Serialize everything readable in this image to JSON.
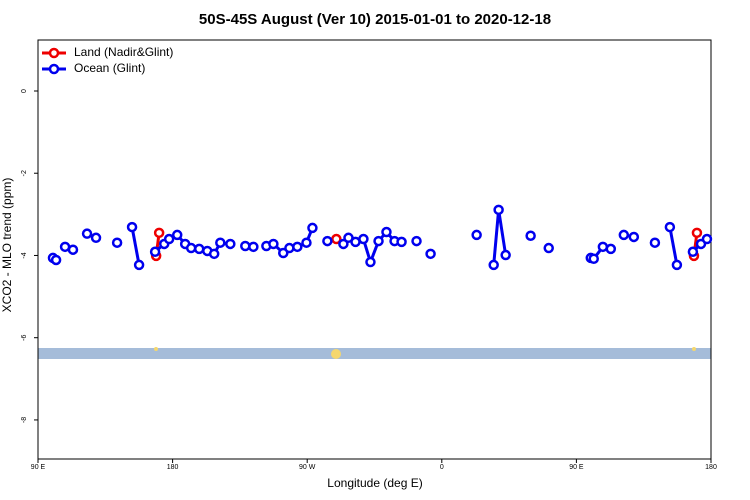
{
  "chart_data": {
    "type": "line",
    "title": "50S-45S August (Ver 10)   2015-01-01 to 2020-12-18",
    "x_label": "Longitude (deg E)",
    "y_label": "XCO2 - MLO trend (ppm)",
    "xlim": [
      90,
      540
    ],
    "ylim": [
      -8.95,
      1.24
    ],
    "xticks": [
      {
        "value": 90,
        "label": "90 E"
      },
      {
        "value": 180,
        "label": "180"
      },
      {
        "value": 270,
        "label": "90 W"
      },
      {
        "value": 360,
        "label": "0"
      },
      {
        "value": 450,
        "label": "90 E"
      },
      {
        "value": 540,
        "label": "180"
      }
    ],
    "yticks": [
      0,
      -2,
      -4,
      -6,
      -8
    ],
    "legend": "top-left",
    "series": [
      {
        "name": "Land (Nadir&Glint)",
        "color": "#ee0000",
        "x": [
          169.0,
          171.0,
          null,
          289.5,
          null,
          528.6,
          530.6
        ],
        "values": [
          -4.01,
          -3.45,
          null,
          -3.6,
          null,
          -4.01,
          -3.45
        ]
      },
      {
        "name": "Ocean (Glint)",
        "color": "#0000ee",
        "x": [
          100.0,
          102.1,
          null,
          108.1,
          113.4,
          null,
          122.8,
          128.8,
          null,
          142.9,
          null,
          152.9,
          157.6,
          null,
          168.3,
          174.4,
          177.7,
          183.1,
          188.4,
          192.4,
          197.8,
          203.2,
          207.8,
          211.9,
          218.6,
          null,
          228.6,
          234.0,
          null,
          242.7,
          247.4,
          254.0,
          258.1,
          263.4,
          269.5,
          273.5,
          null,
          283.5,
          null,
          294.2,
          297.6,
          302.3,
          307.6,
          312.3,
          317.7,
          323.0,
          328.4,
          333.1,
          null,
          343.1,
          null,
          352.5,
          null,
          383.3,
          null,
          394.7,
          398.0,
          402.7,
          null,
          419.4,
          null,
          431.5,
          null,
          459.6,
          461.6,
          467.7,
          473.0,
          null,
          481.7,
          488.4,
          null,
          502.5,
          null,
          512.5,
          517.2,
          null,
          527.9,
          533.3,
          537.3
        ],
        "values": [
          -4.06,
          -4.11,
          null,
          -3.79,
          -3.86,
          null,
          -3.47,
          -3.57,
          null,
          -3.69,
          null,
          -3.31,
          -4.23,
          null,
          -3.91,
          -3.72,
          -3.6,
          -3.5,
          -3.72,
          -3.82,
          -3.84,
          -3.89,
          -3.96,
          -3.69,
          -3.72,
          null,
          -3.77,
          -3.79,
          null,
          -3.77,
          -3.72,
          -3.94,
          -3.82,
          -3.79,
          -3.69,
          -3.33,
          null,
          -3.65,
          null,
          -3.72,
          -3.57,
          -3.67,
          -3.6,
          -4.16,
          -3.65,
          -3.43,
          -3.65,
          -3.67,
          null,
          -3.65,
          null,
          -3.96,
          null,
          -3.5,
          null,
          -4.23,
          -2.89,
          -3.99,
          null,
          -3.52,
          null,
          -3.82,
          null,
          -4.06,
          -4.08,
          -3.79,
          -3.84,
          null,
          -3.5,
          -3.55,
          null,
          -3.69,
          null,
          -3.31,
          -4.23,
          null,
          -3.91,
          -3.72,
          -3.6
        ]
      }
    ]
  }
}
